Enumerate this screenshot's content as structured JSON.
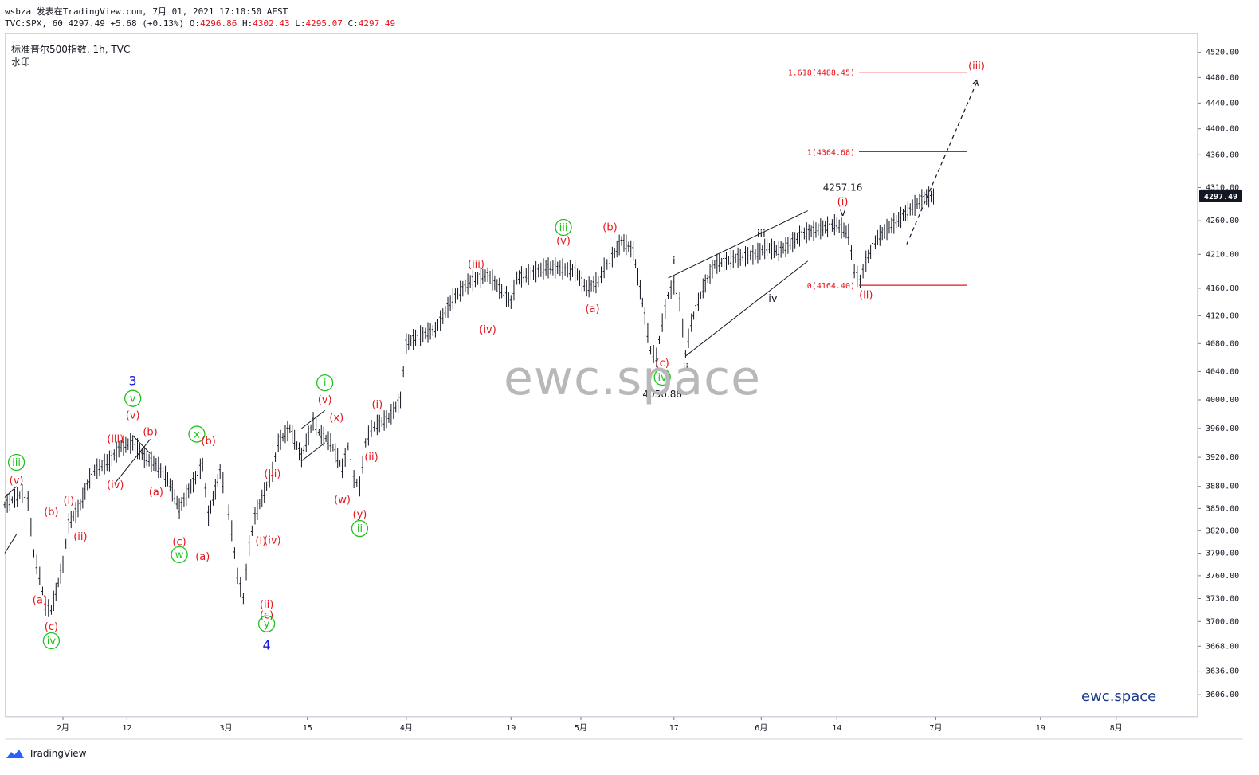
{
  "header": {
    "line1": "wsbza 发表在TradingView.com, 7月 01, 2021 17:10:50 AEST",
    "ticker": "TVC:SPX, 60",
    "last": "4297.49",
    "change": "+5.68 (+0.13%)",
    "open_label": "O:",
    "open": "4296.86",
    "high_label": "H:",
    "high": "4302.43",
    "low_label": "L:",
    "low": "4295.07",
    "close_label": "C:",
    "close": "4297.49"
  },
  "symbol_title": "标准普尔500指数, 1h, TVC",
  "watermark_label": "水印",
  "watermark": "ewc.space",
  "brand": "ewc.space",
  "footer_logo": "TradingView",
  "colors": {
    "candle": "#131722",
    "red": "#e8141c",
    "green": "#1ec21e",
    "blue": "#1a1ae6",
    "axis": "#d1d4dc",
    "price_tag": "#131722"
  },
  "chart_data": {
    "type": "line",
    "title": "标准普尔500指数, 1h, TVC",
    "y_scale": "log",
    "ylim": [
      3578,
      4550
    ],
    "y_ticks": [
      3606,
      3636,
      3668,
      3700,
      3730,
      3760,
      3790,
      3820,
      3850,
      3880,
      3920,
      3960,
      4000,
      4040,
      4080,
      4120,
      4160,
      4210,
      4260,
      4310,
      4360,
      4400,
      4440,
      4480,
      4520
    ],
    "x_ticks": [
      {
        "label": "2月",
        "x": "2021-02-01"
      },
      {
        "label": "12",
        "x": "2021-02-12"
      },
      {
        "label": "3月",
        "x": "2021-03-01"
      },
      {
        "label": "15",
        "x": "2021-03-15"
      },
      {
        "label": "4月",
        "x": "2021-04-01"
      },
      {
        "label": "19",
        "x": "2021-04-19"
      },
      {
        "label": "5月",
        "x": "2021-05-01"
      },
      {
        "label": "17",
        "x": "2021-05-17"
      },
      {
        "label": "6月",
        "x": "2021-06-01"
      },
      {
        "label": "14",
        "x": "2021-06-14"
      },
      {
        "label": "7月",
        "x": "2021-07-01"
      },
      {
        "label": "19",
        "x": "2021-07-19"
      },
      {
        "label": "8月",
        "x": "2021-08-01"
      }
    ],
    "xlim": [
      "2021-01-22",
      "2021-08-15"
    ],
    "current_price": "4297.49",
    "series": [
      {
        "values_x": [
          "2021-01-22",
          "2021-01-25",
          "2021-01-26",
          "2021-01-27",
          "2021-01-28",
          "2021-01-29",
          "2021-01-30",
          "2021-02-01",
          "2021-02-02",
          "2021-02-04",
          "2021-02-06",
          "2021-02-09",
          "2021-02-11",
          "2021-02-13",
          "2021-02-15",
          "2021-02-17",
          "2021-02-19",
          "2021-02-21",
          "2021-02-23",
          "2021-02-25",
          "2021-02-26",
          "2021-02-28",
          "2021-03-01",
          "2021-03-02",
          "2021-03-03",
          "2021-03-04",
          "2021-03-05",
          "2021-03-06",
          "2021-03-08",
          "2021-03-09",
          "2021-03-10",
          "2021-03-12",
          "2021-03-14",
          "2021-03-16",
          "2021-03-17",
          "2021-03-19",
          "2021-03-21",
          "2021-03-22",
          "2021-03-23",
          "2021-03-24",
          "2021-03-25",
          "2021-03-26",
          "2021-03-27",
          "2021-03-29",
          "2021-03-31",
          "2021-04-01",
          "2021-04-03",
          "2021-04-06",
          "2021-04-09",
          "2021-04-12",
          "2021-04-15",
          "2021-04-17",
          "2021-04-19",
          "2021-04-20",
          "2021-04-22",
          "2021-04-25",
          "2021-04-27",
          "2021-04-30",
          "2021-05-02",
          "2021-05-04",
          "2021-05-05",
          "2021-05-06",
          "2021-05-08",
          "2021-05-10",
          "2021-05-12",
          "2021-05-13",
          "2021-05-14",
          "2021-05-15",
          "2021-05-16",
          "2021-05-17",
          "2021-05-18",
          "2021-05-19",
          "2021-05-20",
          "2021-05-22",
          "2021-05-24",
          "2021-05-26",
          "2021-05-28",
          "2021-05-31",
          "2021-06-02",
          "2021-06-04",
          "2021-06-06",
          "2021-06-08",
          "2021-06-10",
          "2021-06-12",
          "2021-06-14",
          "2021-06-16",
          "2021-06-17",
          "2021-06-18",
          "2021-06-19",
          "2021-06-21",
          "2021-06-23",
          "2021-06-25",
          "2021-06-27",
          "2021-06-29",
          "2021-07-01"
        ],
        "values": [
          3855,
          3870,
          3860,
          3790,
          3760,
          3720,
          3715,
          3775,
          3830,
          3855,
          3900,
          3915,
          3935,
          3940,
          3920,
          3910,
          3890,
          3850,
          3880,
          3910,
          3840,
          3900,
          3870,
          3820,
          3760,
          3730,
          3800,
          3840,
          3880,
          3900,
          3940,
          3960,
          3920,
          3970,
          3955,
          3940,
          3905,
          3935,
          3890,
          3880,
          3940,
          3960,
          3965,
          3975,
          4000,
          4080,
          4090,
          4100,
          4145,
          4170,
          4180,
          4160,
          4140,
          4175,
          4180,
          4190,
          4190,
          4185,
          4160,
          4170,
          4190,
          4200,
          4230,
          4215,
          4120,
          4070,
          4060,
          4110,
          4150,
          4165,
          4140,
          4065,
          4110,
          4160,
          4195,
          4200,
          4205,
          4210,
          4220,
          4215,
          4225,
          4240,
          4245,
          4250,
          4255,
          4240,
          4185,
          4170,
          4200,
          4235,
          4250,
          4265,
          4280,
          4295,
          4297
        ]
      }
    ],
    "lines": [
      {
        "name": "fib-1618",
        "label": "1.618(4488.45)",
        "value": 4488.45
      },
      {
        "name": "fib-1",
        "label": "1(4364.68)",
        "value": 4364.68
      },
      {
        "name": "fib-0",
        "label": "0(4164.40)",
        "value": 4164.4
      }
    ],
    "annotations": [
      {
        "text": "(iii)",
        "color": "red",
        "x": "2021-02-10",
        "y": 3945
      },
      {
        "text": "(iv)",
        "color": "red",
        "x": "2021-02-10",
        "y": 3882
      },
      {
        "text": "(v)",
        "color": "red",
        "x": "2021-02-13",
        "y": 3978
      },
      {
        "text": "3",
        "color": "blue",
        "x": "2021-02-13",
        "y": 4025
      },
      {
        "text": "v",
        "color": "green",
        "circled": true,
        "x": "2021-02-13",
        "y": 4002
      },
      {
        "text": "(b)",
        "color": "red",
        "x": "2021-02-16",
        "y": 3955
      },
      {
        "text": "(a)",
        "color": "red",
        "x": "2021-02-17",
        "y": 3872
      },
      {
        "text": "x",
        "color": "green",
        "circled": true,
        "x": "2021-02-24",
        "y": 3952
      },
      {
        "text": "(c)",
        "color": "red",
        "x": "2021-02-21",
        "y": 3805
      },
      {
        "text": "w",
        "color": "green",
        "circled": true,
        "x": "2021-02-21",
        "y": 3788
      },
      {
        "text": "(b)",
        "color": "red",
        "x": "2021-02-26",
        "y": 3942
      },
      {
        "text": "(a)",
        "color": "red",
        "x": "2021-02-25",
        "y": 3785
      },
      {
        "text": "(iii)",
        "color": "red",
        "x": "2021-03-09",
        "y": 3897
      },
      {
        "text": "(i)",
        "color": "red",
        "x": "2021-03-07",
        "y": 3806
      },
      {
        "text": "(iv)",
        "color": "red",
        "x": "2021-03-09",
        "y": 3807
      },
      {
        "text": "(ii)",
        "color": "red",
        "x": "2021-03-08",
        "y": 3722
      },
      {
        "text": "(c)",
        "color": "red",
        "x": "2021-03-08",
        "y": 3708
      },
      {
        "text": "y",
        "color": "green",
        "circled": true,
        "x": "2021-03-08",
        "y": 3697
      },
      {
        "text": "4",
        "color": "blue",
        "x": "2021-03-08",
        "y": 3668
      },
      {
        "text": "i",
        "color": "green",
        "circled": true,
        "x": "2021-03-18",
        "y": 4024
      },
      {
        "text": "(v)",
        "color": "red",
        "x": "2021-03-18",
        "y": 4000
      },
      {
        "text": "(x)",
        "color": "red",
        "x": "2021-03-20",
        "y": 3975
      },
      {
        "text": "(w)",
        "color": "red",
        "x": "2021-03-21",
        "y": 3862
      },
      {
        "text": "(i)",
        "color": "red",
        "x": "2021-03-27",
        "y": 3993
      },
      {
        "text": "(ii)",
        "color": "red",
        "x": "2021-03-26",
        "y": 3920
      },
      {
        "text": "(y)",
        "color": "red",
        "x": "2021-03-24",
        "y": 3842
      },
      {
        "text": "ii",
        "color": "green",
        "circled": true,
        "x": "2021-03-24",
        "y": 3823
      },
      {
        "text": "(a)",
        "color": "red",
        "x": "2021-01-28",
        "y": 3728
      },
      {
        "text": "(b)",
        "color": "red",
        "x": "2021-01-30",
        "y": 3845
      },
      {
        "text": "(c)",
        "color": "red",
        "x": "2021-01-30",
        "y": 3693
      },
      {
        "text": "iv",
        "color": "green",
        "circled": true,
        "x": "2021-01-30",
        "y": 3675
      },
      {
        "text": "iii",
        "color": "green",
        "circled": true,
        "x": "2021-01-24",
        "y": 3913
      },
      {
        "text": "(v)",
        "color": "red",
        "x": "2021-01-24",
        "y": 3888
      },
      {
        "text": "(i)",
        "color": "red",
        "x": "2021-02-02",
        "y": 3860
      },
      {
        "text": "(ii)",
        "color": "red",
        "x": "2021-02-04",
        "y": 3812
      },
      {
        "text": "(iii)",
        "color": "red",
        "x": "2021-04-13",
        "y": 4195
      },
      {
        "text": "(iv)",
        "color": "red",
        "x": "2021-04-15",
        "y": 4100
      },
      {
        "text": "iii",
        "color": "green",
        "circled": true,
        "x": "2021-04-28",
        "y": 4250
      },
      {
        "text": "(v)",
        "color": "red",
        "x": "2021-04-28",
        "y": 4230
      },
      {
        "text": "(b)",
        "color": "red",
        "x": "2021-05-06",
        "y": 4250
      },
      {
        "text": "(a)",
        "color": "red",
        "x": "2021-05-03",
        "y": 4130
      },
      {
        "text": "(c)",
        "color": "red",
        "x": "2021-05-15",
        "y": 4052
      },
      {
        "text": "iv",
        "color": "green",
        "circled": true,
        "x": "2021-05-15",
        "y": 4032
      },
      {
        "text": "4056.88",
        "color": "black",
        "x": "2021-05-15",
        "y": 4008
      },
      {
        "text": "i",
        "color": "black",
        "x": "2021-05-17",
        "y": 4200
      },
      {
        "text": "ii",
        "color": "black",
        "x": "2021-05-19",
        "y": 4045
      },
      {
        "text": "iii",
        "color": "black",
        "x": "2021-06-01",
        "y": 4240
      },
      {
        "text": "iv",
        "color": "black",
        "x": "2021-06-03",
        "y": 4145
      },
      {
        "text": "v",
        "color": "black",
        "x": "2021-06-15",
        "y": 4272
      },
      {
        "text": "(i)",
        "color": "red",
        "x": "2021-06-15",
        "y": 4288
      },
      {
        "text": "4257.16",
        "color": "black",
        "x": "2021-06-15",
        "y": 4310
      },
      {
        "text": "(ii)",
        "color": "red",
        "x": "2021-06-19",
        "y": 4150
      },
      {
        "text": "(iii)",
        "color": "red",
        "x": "2021-07-08",
        "y": 4498
      }
    ]
  }
}
